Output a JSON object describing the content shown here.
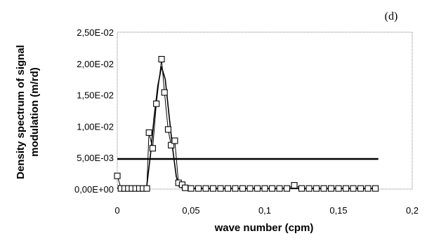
{
  "chart_data": {
    "type": "scatter",
    "panel_label": "(d)",
    "xlabel": "wave number (cpm)",
    "ylabel_lines": [
      "Density spectrum of signal",
      "modulation (m/rd)"
    ],
    "xlim": [
      0,
      0.2
    ],
    "ylim": [
      0,
      0.025
    ],
    "x_ticks": [
      {
        "value": 0,
        "label": "0"
      },
      {
        "value": 0.05,
        "label": "0,05"
      },
      {
        "value": 0.1,
        "label": "0,1"
      },
      {
        "value": 0.15,
        "label": "0,15"
      },
      {
        "value": 0.2,
        "label": "0,2"
      }
    ],
    "y_ticks": [
      {
        "value": 0,
        "label": "0,00E+00"
      },
      {
        "value": 0.005,
        "label": "5,00E-03"
      },
      {
        "value": 0.01,
        "label": "1,00E-02"
      },
      {
        "value": 0.015,
        "label": "1,50E-02"
      },
      {
        "value": 0.02,
        "label": "2,00E-02"
      },
      {
        "value": 0.025,
        "label": "2,50E-02"
      }
    ],
    "grid": false,
    "legend": "none",
    "threshold": {
      "y": 0.0048,
      "x": [
        0,
        0.177
      ]
    },
    "square_series": {
      "marker": "open-square",
      "points": [
        [
          0.0,
          0.0021
        ],
        [
          0.0025,
          0.0001
        ],
        [
          0.005,
          0.0001
        ],
        [
          0.0075,
          0.0001
        ],
        [
          0.01,
          0.0001
        ],
        [
          0.0125,
          0.0001
        ],
        [
          0.015,
          0.0001
        ],
        [
          0.0175,
          0.0001
        ],
        [
          0.02,
          0.0001
        ],
        [
          0.0215,
          0.009
        ],
        [
          0.024,
          0.0065
        ],
        [
          0.0265,
          0.0136
        ],
        [
          0.03,
          0.0207
        ],
        [
          0.032,
          0.0154
        ],
        [
          0.0345,
          0.0095
        ],
        [
          0.0365,
          0.007
        ],
        [
          0.039,
          0.0077
        ],
        [
          0.0415,
          0.001
        ],
        [
          0.044,
          0.0007
        ],
        [
          0.046,
          0.0002
        ],
        [
          0.05,
          0.0001
        ],
        [
          0.055,
          0.0001
        ],
        [
          0.06,
          0.0001
        ],
        [
          0.065,
          0.0001
        ],
        [
          0.07,
          0.0001
        ],
        [
          0.075,
          0.0001
        ],
        [
          0.08,
          0.0001
        ],
        [
          0.085,
          0.0001
        ],
        [
          0.09,
          0.0001
        ],
        [
          0.095,
          0.0001
        ],
        [
          0.1,
          0.0001
        ],
        [
          0.105,
          0.0001
        ],
        [
          0.11,
          0.0001
        ],
        [
          0.115,
          0.0001
        ],
        [
          0.12,
          0.0006
        ],
        [
          0.125,
          0.0001
        ],
        [
          0.13,
          0.0001
        ],
        [
          0.135,
          0.0001
        ],
        [
          0.14,
          0.0001
        ],
        [
          0.145,
          0.0001
        ],
        [
          0.15,
          0.0001
        ],
        [
          0.155,
          0.0001
        ],
        [
          0.16,
          0.0001
        ],
        [
          0.165,
          0.0001
        ],
        [
          0.17,
          0.0001
        ],
        [
          0.175,
          0.0001
        ]
      ]
    },
    "smooth_curve": {
      "color": "#000000",
      "points": [
        [
          0.0,
          0.0001
        ],
        [
          0.01,
          0.0001
        ],
        [
          0.018,
          0.0001
        ],
        [
          0.02,
          0.0005
        ],
        [
          0.0225,
          0.0055
        ],
        [
          0.025,
          0.0115
        ],
        [
          0.0275,
          0.0165
        ],
        [
          0.03,
          0.0195
        ],
        [
          0.0325,
          0.0175
        ],
        [
          0.035,
          0.012
        ],
        [
          0.0375,
          0.0065
        ],
        [
          0.04,
          0.002
        ],
        [
          0.042,
          0.0004
        ],
        [
          0.045,
          0.0001
        ],
        [
          0.177,
          0.0001
        ]
      ]
    }
  }
}
